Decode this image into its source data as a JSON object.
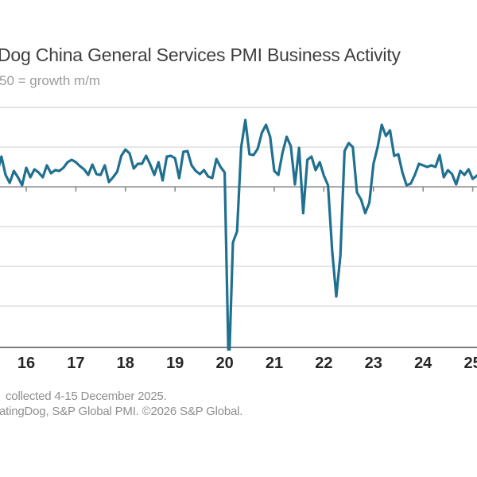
{
  "header": {
    "title": "Dog China General Services PMI Business Activity",
    "subtitle": "50 = growth m/m"
  },
  "footer": {
    "line1": "collected 4-15 December 2025.",
    "line2": "atingDog, S&P Global PMI. ©2026 S&P Global."
  },
  "chart_data": {
    "type": "line",
    "title": "Dog China General Services PMI Business Activity",
    "subtitle": "50 = growth m/m",
    "series_name": "China General Services PMI Business Activity",
    "frequency": "monthly",
    "start": "2015-06",
    "end": "2025-02",
    "values": [
      51.8,
      53.8,
      51.5,
      50.5,
      52.0,
      51.2,
      50.2,
      52.4,
      51.2,
      52.2,
      51.8,
      51.2,
      52.7,
      51.7,
      52.1,
      52.0,
      52.4,
      53.1,
      53.4,
      53.1,
      52.6,
      52.2,
      51.5,
      52.8,
      51.6,
      51.5,
      52.7,
      50.6,
      51.2,
      51.9,
      53.9,
      54.7,
      54.2,
      52.3,
      52.9,
      52.9,
      53.9,
      52.8,
      51.5,
      53.1,
      50.8,
      53.8,
      53.9,
      53.6,
      51.1,
      54.4,
      54.5,
      52.7,
      52.0,
      51.6,
      52.1,
      51.3,
      51.1,
      53.5,
      52.5,
      51.8,
      26.5,
      43.0,
      44.4,
      55.0,
      58.4,
      54.1,
      54.0,
      54.8,
      56.8,
      57.8,
      56.3,
      52.0,
      51.5,
      54.3,
      56.3,
      55.1,
      50.3,
      54.9,
      46.7,
      53.4,
      53.8,
      52.1,
      53.1,
      51.4,
      50.2,
      42.0,
      36.2,
      41.4,
      54.5,
      55.5,
      55.0,
      49.3,
      48.4,
      46.7,
      48.0,
      52.9,
      55.0,
      57.8,
      56.4,
      57.1,
      53.9,
      54.1,
      51.8,
      50.2,
      50.4,
      51.5,
      52.9,
      52.7,
      52.5,
      52.7,
      52.5,
      54.0,
      51.2,
      52.1,
      51.6,
      50.3,
      52.0,
      51.5,
      52.2,
      51.0,
      51.4
    ],
    "x_tick_labels": [
      "16",
      "17",
      "18",
      "19",
      "20",
      "21",
      "22",
      "23",
      "24",
      "25"
    ],
    "x_tick_years": [
      2016,
      2017,
      2018,
      2019,
      2020,
      2021,
      2022,
      2023,
      2024,
      2025
    ],
    "reference_value": 50,
    "y_axis": {
      "min": 30,
      "max": 60,
      "step": 5,
      "labels_visible": false
    },
    "gridline_values": [
      60,
      55,
      45,
      40,
      35
    ],
    "legend": "none",
    "grid_on": true,
    "line_color": "#20708f",
    "grid_color": "#d6d6d6",
    "reference_line_color": "#8f8f8f",
    "axis_color": "#7f7f7f",
    "label_color": "#262626"
  }
}
